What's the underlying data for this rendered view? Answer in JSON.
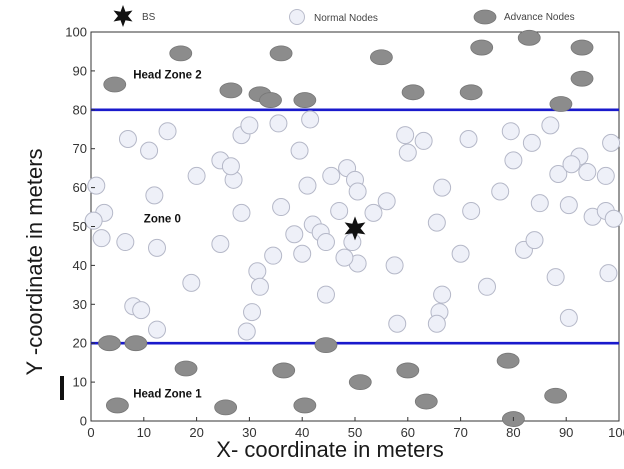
{
  "chart_data": {
    "type": "scatter",
    "title": "",
    "xlabel": "X- coordinate in meters",
    "ylabel": "Y -coordinate in meters",
    "xlim": [
      0,
      100
    ],
    "ylim": [
      0,
      100
    ],
    "x_ticks": [
      "0",
      "10",
      "20",
      "30",
      "40",
      "50",
      "60",
      "70",
      "80",
      "90",
      "100"
    ],
    "y_ticks": [
      "0",
      "10",
      "20",
      "30",
      "40",
      "50",
      "60",
      "70",
      "80",
      "90",
      "100"
    ],
    "grid": false,
    "legend": {
      "placement": "top",
      "entries": [
        {
          "label": "BS",
          "marker": "star",
          "color": "#111111"
        },
        {
          "label": "Normal Nodes",
          "marker": "circle",
          "color": "#eef0f8"
        },
        {
          "label": "Advance Nodes",
          "marker": "ellipse",
          "color": "#8a8a8a"
        }
      ]
    },
    "zone_boundaries": [
      {
        "y": 80,
        "color": "#1a1acc"
      },
      {
        "y": 20,
        "color": "#1a1acc"
      }
    ],
    "zone_labels": [
      {
        "text": "Head Zone 2",
        "x": 8,
        "y": 88
      },
      {
        "text": "Zone 0",
        "x": 10,
        "y": 51
      },
      {
        "text": "Head Zone 1",
        "x": 8,
        "y": 6
      }
    ],
    "series": [
      {
        "name": "BS",
        "marker": "star",
        "points": [
          [
            50,
            49.5
          ]
        ]
      },
      {
        "name": "Normal Nodes",
        "marker": "circle",
        "points": [
          [
            7,
            72.5
          ],
          [
            11,
            69.5
          ],
          [
            14.5,
            74.5
          ],
          [
            1,
            60.5
          ],
          [
            2.5,
            53.5
          ],
          [
            0.5,
            51.5
          ],
          [
            2,
            47
          ],
          [
            6.5,
            46
          ],
          [
            12,
            58
          ],
          [
            12.5,
            44.5
          ],
          [
            20,
            63
          ],
          [
            24.5,
            67
          ],
          [
            27,
            62
          ],
          [
            26.5,
            65.5
          ],
          [
            28.5,
            73.5
          ],
          [
            30,
            76
          ],
          [
            35.5,
            76.5
          ],
          [
            41.5,
            77.5
          ],
          [
            39.5,
            69.5
          ],
          [
            41,
            60.5
          ],
          [
            45.5,
            63
          ],
          [
            48.5,
            65
          ],
          [
            50,
            62
          ],
          [
            50.5,
            59
          ],
          [
            28.5,
            53.5
          ],
          [
            24.5,
            45.5
          ],
          [
            36,
            55
          ],
          [
            42,
            50.5
          ],
          [
            38.5,
            48
          ],
          [
            43.5,
            48.5
          ],
          [
            44.5,
            46
          ],
          [
            40,
            43
          ],
          [
            47,
            54
          ],
          [
            49.5,
            46
          ],
          [
            50.5,
            40.5
          ],
          [
            53.5,
            53.5
          ],
          [
            56,
            56.5
          ],
          [
            57.5,
            40
          ],
          [
            48,
            42
          ],
          [
            34.5,
            42.5
          ],
          [
            31.5,
            38.5
          ],
          [
            32,
            34.5
          ],
          [
            44.5,
            32.5
          ],
          [
            30.5,
            28
          ],
          [
            29.5,
            23
          ],
          [
            12.5,
            23.5
          ],
          [
            8,
            29.5
          ],
          [
            9.5,
            28.5
          ],
          [
            19,
            35.5
          ],
          [
            59.5,
            73.5
          ],
          [
            60,
            69
          ],
          [
            63,
            72
          ],
          [
            66.5,
            60
          ],
          [
            71.5,
            72.5
          ],
          [
            72,
            54
          ],
          [
            65.5,
            51
          ],
          [
            70,
            43
          ],
          [
            66.5,
            32.5
          ],
          [
            66,
            28
          ],
          [
            65.5,
            25
          ],
          [
            58,
            25
          ],
          [
            75,
            34.5
          ],
          [
            79.5,
            74.5
          ],
          [
            83.5,
            71.5
          ],
          [
            87,
            76
          ],
          [
            80,
            67
          ],
          [
            85,
            56
          ],
          [
            82,
            44
          ],
          [
            84,
            46.5
          ],
          [
            88.5,
            63.5
          ],
          [
            92.5,
            68
          ],
          [
            91,
            66
          ],
          [
            90.5,
            55.5
          ],
          [
            94,
            64
          ],
          [
            95,
            52.5
          ],
          [
            97.5,
            54
          ],
          [
            99,
            52
          ],
          [
            97.5,
            63
          ],
          [
            98.5,
            71.5
          ],
          [
            98,
            38
          ],
          [
            88,
            37
          ],
          [
            90.5,
            26.5
          ],
          [
            77.5,
            59
          ]
        ]
      },
      {
        "name": "Advance Nodes",
        "marker": "ellipse",
        "points": [
          [
            4.5,
            86.5
          ],
          [
            17,
            94.5
          ],
          [
            26.5,
            85
          ],
          [
            36,
            94.5
          ],
          [
            32,
            84
          ],
          [
            34,
            82.5
          ],
          [
            40.5,
            82.5
          ],
          [
            55,
            93.5
          ],
          [
            61,
            84.5
          ],
          [
            74,
            96
          ],
          [
            72,
            84.5
          ],
          [
            83,
            98.5
          ],
          [
            89,
            81.5
          ],
          [
            93,
            96
          ],
          [
            93,
            88
          ],
          [
            3.5,
            20
          ],
          [
            8.5,
            20
          ],
          [
            44.5,
            19.5
          ],
          [
            18,
            13.5
          ],
          [
            36.5,
            13
          ],
          [
            51,
            10
          ],
          [
            60,
            13
          ],
          [
            79,
            15.5
          ],
          [
            5,
            4
          ],
          [
            25.5,
            3.5
          ],
          [
            40.5,
            4
          ],
          [
            63.5,
            5
          ],
          [
            80,
            0.5
          ],
          [
            88,
            6.5
          ]
        ]
      }
    ]
  }
}
